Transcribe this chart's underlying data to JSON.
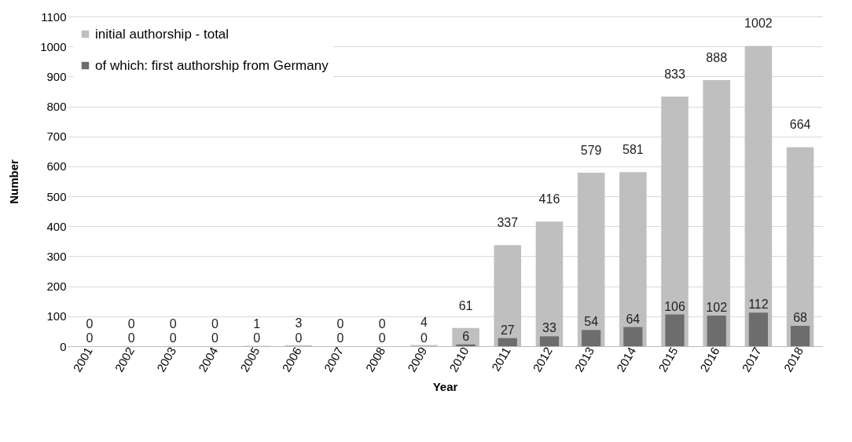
{
  "chart_data": {
    "type": "bar",
    "xlabel": "Year",
    "ylabel": "Number",
    "categories": [
      "2001",
      "2002",
      "2003",
      "2004",
      "2005",
      "2006",
      "2007",
      "2008",
      "2009",
      "2010",
      "2011",
      "2012",
      "2013",
      "2014",
      "2015",
      "2016",
      "2017",
      "2018"
    ],
    "series": [
      {
        "name": "initial authorship - total",
        "color": "#bfbfbf",
        "values": [
          0,
          0,
          0,
          0,
          1,
          3,
          0,
          0,
          4,
          61,
          337,
          416,
          579,
          581,
          833,
          888,
          1002,
          664
        ]
      },
      {
        "name": "of which: first authorship from Germany",
        "color": "#6d6d6d",
        "values": [
          0,
          0,
          0,
          0,
          0,
          0,
          0,
          0,
          0,
          6,
          27,
          33,
          54,
          64,
          106,
          102,
          112,
          68
        ]
      }
    ],
    "ylim": [
      0,
      1100
    ],
    "yticks": [
      0,
      100,
      200,
      300,
      400,
      500,
      600,
      700,
      800,
      900,
      1000,
      1100
    ],
    "grid": "y",
    "legend": "top left",
    "data_labels": true
  }
}
